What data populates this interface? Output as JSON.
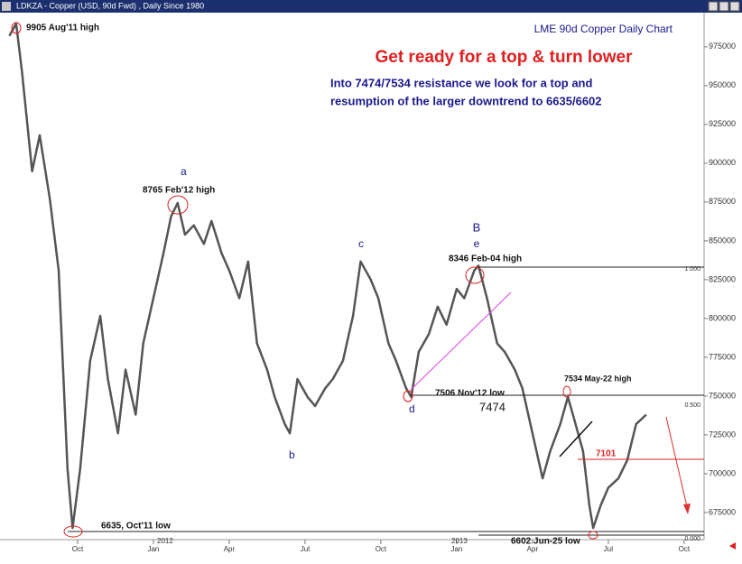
{
  "window": {
    "title": "LDKZA - Copper (USD, 90d Fwd) , Daily Since 1980"
  },
  "chart_data": {
    "type": "line",
    "title": "LME 90d Copper Daily Chart",
    "subtitle": "Get ready for a top & turn lower",
    "commentary": [
      "Into 7474/7534 resistance we look for a top and",
      "resumption of the larger downtrend to 6635/6602"
    ],
    "annotations": [
      "9905 Aug'11 high",
      "a",
      "8765 Feb'12 high",
      "b",
      "c",
      "d",
      "B",
      "e",
      "8346 Feb-04 high",
      "1.000",
      "7534 May-22 high",
      "7506 Nov'12 low",
      "7474",
      "0.500",
      "7101",
      "6635, Oct'11 low",
      "6602 Jun-25 low",
      "0.000"
    ],
    "year_labels": [
      "2012",
      "2013"
    ],
    "color": "#555555",
    "x": [
      -0.7,
      -0.43,
      -0.2,
      0.2,
      0.5,
      0.9,
      1.25,
      1.6,
      1.8,
      2.1,
      2.5,
      2.9,
      3.2,
      3.6,
      3.9,
      4.3,
      4.6,
      5.0,
      5.4,
      5.7,
      5.96,
      6.25,
      6.6,
      7.0,
      7.3,
      7.7,
      8.0,
      8.4,
      8.75,
      9.1,
      9.5,
      9.8,
      10.2,
      10.4,
      10.7,
      11.1,
      11.4,
      11.8,
      12.1,
      12.5,
      12.9,
      13.2,
      13.6,
      13.9,
      14.3,
      14.6,
      15.0,
      15.2,
      15.5,
      15.9,
      16.25,
      16.6,
      17.0,
      17.3,
      17.7,
      17.86,
      18.2,
      18.6,
      18.9,
      19.3,
      19.6,
      20.0,
      20.4,
      20.7,
      21.1,
      21.4,
      21.6,
      22.0,
      22.25,
      22.4,
      22.7,
      23.0,
      23.4,
      23.75,
      24.1,
      24.5
    ],
    "values": [
      982000,
      990000,
      958700,
      894800,
      918000,
      877000,
      831000,
      703000,
      665000,
      703000,
      772700,
      801700,
      761000,
      726000,
      767000,
      738000,
      784000,
      813000,
      842000,
      865700,
      874400,
      854000,
      860000,
      848000,
      862800,
      842000,
      831000,
      813000,
      836700,
      784000,
      767000,
      749400,
      732000,
      726000,
      761000,
      749400,
      743600,
      755000,
      761000,
      772700,
      801700,
      836700,
      825000,
      813000,
      784000,
      772700,
      755000,
      749400,
      778500,
      790000,
      807600,
      796000,
      819000,
      813000,
      831000,
      834000,
      813000,
      784000,
      778500,
      767000,
      755000,
      726000,
      697000,
      714500,
      732000,
      749400,
      738000,
      714500,
      679600,
      665000,
      679600,
      691000,
      697000,
      708700,
      732000,
      738000
    ],
    "xlim": [
      -1.07,
      26.79
    ],
    "xticks": [
      {
        "value": 2,
        "label": "Oct"
      },
      {
        "value": 5,
        "label": "Jan"
      },
      {
        "value": 8,
        "label": "Apr"
      },
      {
        "value": 11,
        "label": "Jul"
      },
      {
        "value": 14,
        "label": "Oct"
      },
      {
        "value": 17,
        "label": "Jan"
      },
      {
        "value": 20,
        "label": "Apr"
      },
      {
        "value": 23,
        "label": "Jul"
      },
      {
        "value": 26,
        "label": "Oct"
      }
    ],
    "ylim": [
      657500,
      1000500
    ],
    "yticks": [
      675000,
      700000,
      725000,
      750000,
      775000,
      800000,
      825000,
      850000,
      875000,
      900000,
      925000,
      950000,
      975000
    ]
  }
}
